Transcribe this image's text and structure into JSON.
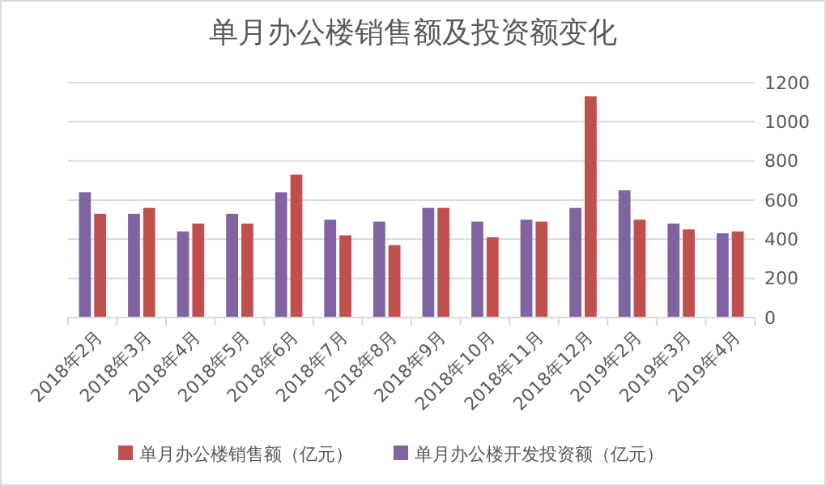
{
  "chart_data": {
    "type": "bar",
    "title": "单月办公楼销售额及投资额变化",
    "categories": [
      "2018年2月",
      "2018年3月",
      "2018年4月",
      "2018年5月",
      "2018年6月",
      "2018年7月",
      "2018年8月",
      "2018年9月",
      "2018年10月",
      "2018年11月",
      "2018年12月",
      "2019年2月",
      "2019年3月",
      "2019年4月"
    ],
    "series": [
      {
        "name": "单月办公楼开发投资额（亿元）",
        "color": "#8064a2",
        "values": [
          640,
          530,
          440,
          530,
          640,
          500,
          490,
          560,
          490,
          500,
          560,
          650,
          480,
          430
        ]
      },
      {
        "name": "单月办公楼销售额（亿元）",
        "color": "#c0504d",
        "values": [
          530,
          560,
          480,
          480,
          730,
          420,
          370,
          560,
          410,
          490,
          1130,
          500,
          450,
          440
        ]
      }
    ],
    "ylim": [
      0,
      1200
    ],
    "yticks": [
      0,
      200,
      400,
      600,
      800,
      1000,
      1200
    ],
    "grid": "y",
    "legend": "bottom"
  }
}
